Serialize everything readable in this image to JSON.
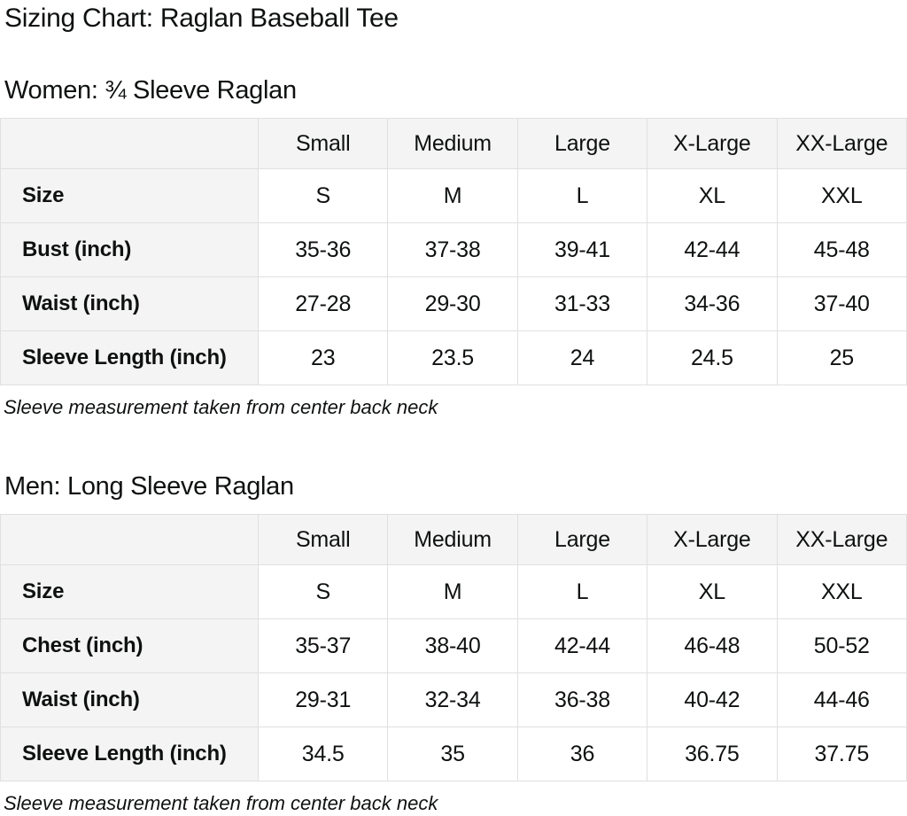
{
  "page": {
    "title": "Sizing Chart: Raglan Baseball Tee"
  },
  "colors": {
    "header_background": "#f4f4f4",
    "label_column_background": "#f4f4f4",
    "table_border": "#e0e0e0",
    "text": "#0f1111",
    "page_background": "#ffffff"
  },
  "sections": [
    {
      "heading": "Women: ¾ Sleeve Raglan",
      "note": "Sleeve measurement taken from center back neck",
      "table": {
        "columns": [
          "",
          "Small",
          "Medium",
          "Large",
          "X-Large",
          "XX-Large"
        ],
        "rows": [
          {
            "label": "Size",
            "values": [
              "S",
              "M",
              "L",
              "XL",
              "XXL"
            ]
          },
          {
            "label": "Bust (inch)",
            "values": [
              "35-36",
              "37-38",
              "39-41",
              "42-44",
              "45-48"
            ]
          },
          {
            "label": "Waist (inch)",
            "values": [
              "27-28",
              "29-30",
              "31-33",
              "34-36",
              "37-40"
            ]
          },
          {
            "label": "Sleeve Length (inch)",
            "values": [
              "23",
              "23.5",
              "24",
              "24.5",
              "25"
            ]
          }
        ]
      }
    },
    {
      "heading": "Men: Long Sleeve Raglan",
      "note": "Sleeve measurement taken from center back neck",
      "table": {
        "columns": [
          "",
          "Small",
          "Medium",
          "Large",
          "X-Large",
          "XX-Large"
        ],
        "rows": [
          {
            "label": "Size",
            "values": [
              "S",
              "M",
              "L",
              "XL",
              "XXL"
            ]
          },
          {
            "label": "Chest (inch)",
            "values": [
              "35-37",
              "38-40",
              "42-44",
              "46-48",
              "50-52"
            ]
          },
          {
            "label": "Waist (inch)",
            "values": [
              "29-31",
              "32-34",
              "36-38",
              "40-42",
              "44-46"
            ]
          },
          {
            "label": "Sleeve Length (inch)",
            "values": [
              "34.5",
              "35",
              "36",
              "36.75",
              "37.75"
            ]
          }
        ]
      }
    }
  ]
}
